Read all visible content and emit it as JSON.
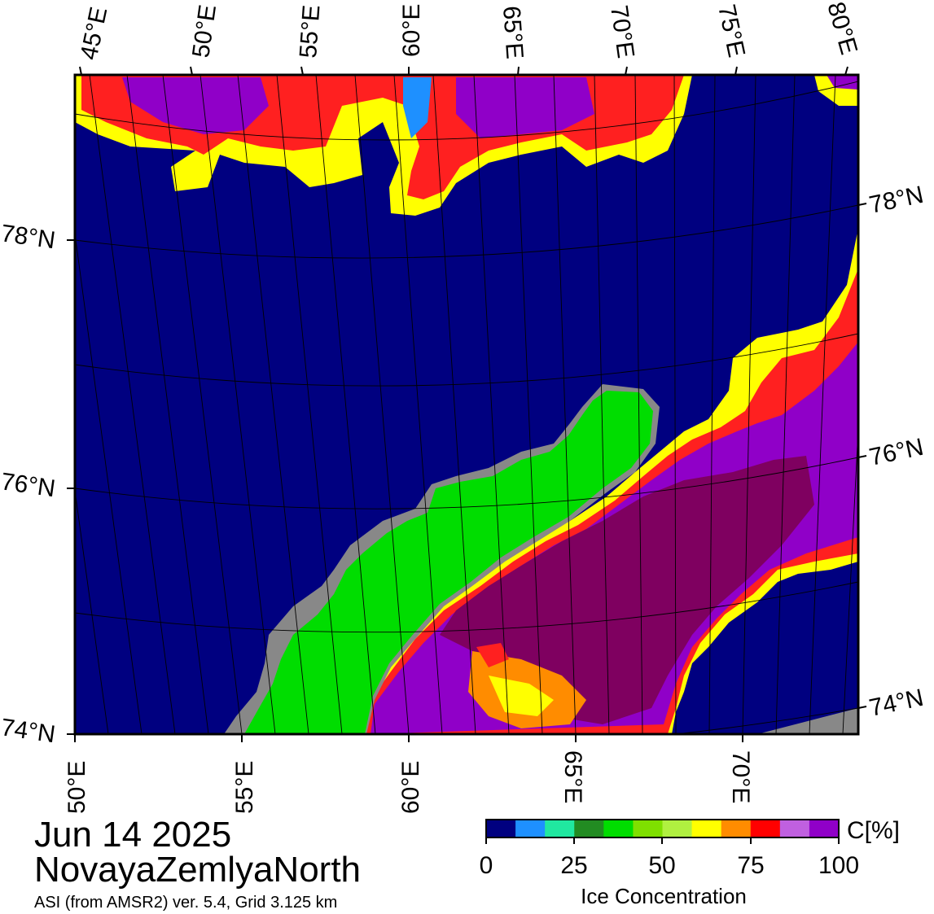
{
  "title": {
    "date": "Jun 14 2025",
    "region": "NovayaZemlyaNorth",
    "source": "ASI (from AMSR2) ver. 5.4,  Grid 3.125 km"
  },
  "map": {
    "top_lon_labels": [
      "45°E",
      "50°E",
      "55°E",
      "60°E",
      "65°E",
      "70°E",
      "75°E",
      "80°E"
    ],
    "bottom_lon_labels": [
      "50°E",
      "55°E",
      "60°E",
      "65°E",
      "70°E"
    ],
    "left_lat_labels": [
      "78°N",
      "76°N",
      "74°N"
    ],
    "right_lat_labels": [
      "78°N",
      "76°N",
      "74°N"
    ],
    "colors": {
      "open_water": "#000080",
      "land": "#00dd00",
      "land_mask": "#888888",
      "ice_high": "#7f0060"
    }
  },
  "colorbar": {
    "label": "Ice Concentration",
    "unit": "C[%]",
    "ticks": [
      "0",
      "25",
      "50",
      "75",
      "100"
    ],
    "colors": [
      "#000080",
      "#1e90ff",
      "#20e8a0",
      "#228b22",
      "#00dd00",
      "#7fe000",
      "#b0f040",
      "#ffff00",
      "#ff8c00",
      "#ff0000",
      "#c060e0",
      "#9000c8"
    ]
  }
}
